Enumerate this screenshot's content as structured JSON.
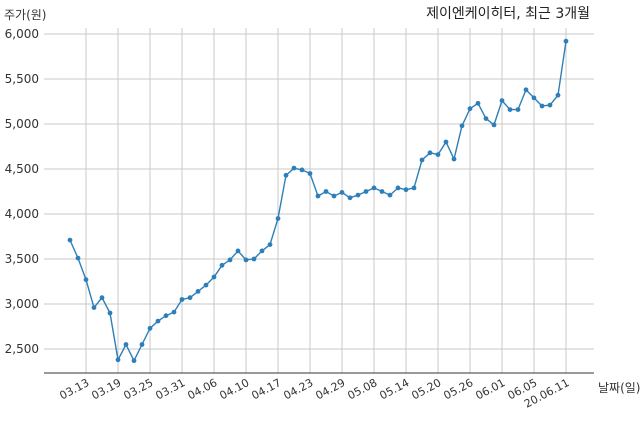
{
  "chart_data": {
    "type": "line",
    "title": "제이엔케이히터, 최근 3개월",
    "xlabel": "날짜(일)",
    "ylabel": "주가(원)",
    "ylim": [
      2150,
      6150
    ],
    "yticks": [
      2500,
      3000,
      3500,
      4000,
      4500,
      5000,
      5500,
      6000
    ],
    "ytick_labels": [
      "2,500",
      "3,000",
      "3,500",
      "4,000",
      "4,500",
      "5,000",
      "5,500",
      "6,000"
    ],
    "xtick_labels": [
      "03.13",
      "03.19",
      "03.25",
      "03.31",
      "04.06",
      "04.10",
      "04.17",
      "04.23",
      "04.29",
      "05.08",
      "05.14",
      "05.20",
      "05.26",
      "06.01",
      "06.05",
      "20.06.11"
    ],
    "xtick_indices": [
      2,
      6,
      10,
      14,
      18,
      22,
      26,
      30,
      34,
      38,
      42,
      46,
      50,
      54,
      58,
      62
    ],
    "grid": true,
    "series": [
      {
        "color": "#2e7fb8",
        "values": [
          3710,
          3510,
          3270,
          2960,
          3070,
          2900,
          2380,
          2550,
          2370,
          2550,
          2730,
          2810,
          2870,
          2910,
          3050,
          3070,
          3140,
          3210,
          3300,
          3430,
          3490,
          3590,
          3490,
          3500,
          3590,
          3660,
          3950,
          4430,
          4510,
          4490,
          4450,
          4200,
          4250,
          4200,
          4240,
          4180,
          4210,
          4250,
          4290,
          4250,
          4210,
          4290,
          4270,
          4290,
          4600,
          4680,
          4660,
          4800,
          4610,
          4980,
          5170,
          5230,
          5060,
          4990,
          5260,
          5160,
          5160,
          5380,
          5290,
          5200,
          5210,
          5320,
          5920
        ]
      }
    ]
  }
}
